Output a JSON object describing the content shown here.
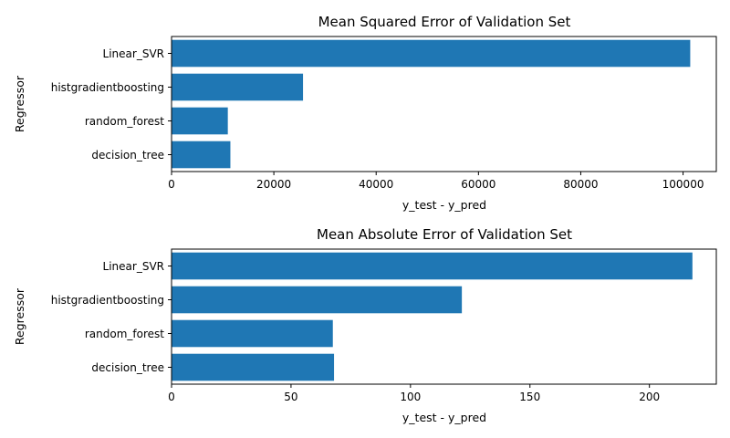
{
  "chart_data": [
    {
      "type": "bar",
      "orientation": "horizontal",
      "title": "Mean Squared Error of Validation Set",
      "xlabel": "y_test - y_pred",
      "ylabel": "Regressor",
      "categories": [
        "decision_tree",
        "random_forest",
        "histgradientboosting",
        "Linear_SVR"
      ],
      "values": [
        11500,
        11000,
        25700,
        101400
      ],
      "xlim": [
        0,
        106500
      ],
      "xticks": [
        0,
        20000,
        40000,
        60000,
        80000,
        100000
      ],
      "grid": false,
      "bar_color": "#1f77b4"
    },
    {
      "type": "bar",
      "orientation": "horizontal",
      "title": "Mean Absolute Error of Validation Set",
      "xlabel": "y_test - y_pred",
      "ylabel": "Regressor",
      "categories": [
        "decision_tree",
        "random_forest",
        "histgradientboosting",
        "Linear_SVR"
      ],
      "values": [
        68,
        67.5,
        121.5,
        218
      ],
      "xlim": [
        0,
        228
      ],
      "xticks": [
        0,
        50,
        100,
        150,
        200
      ],
      "grid": false,
      "bar_color": "#1f77b4"
    }
  ]
}
